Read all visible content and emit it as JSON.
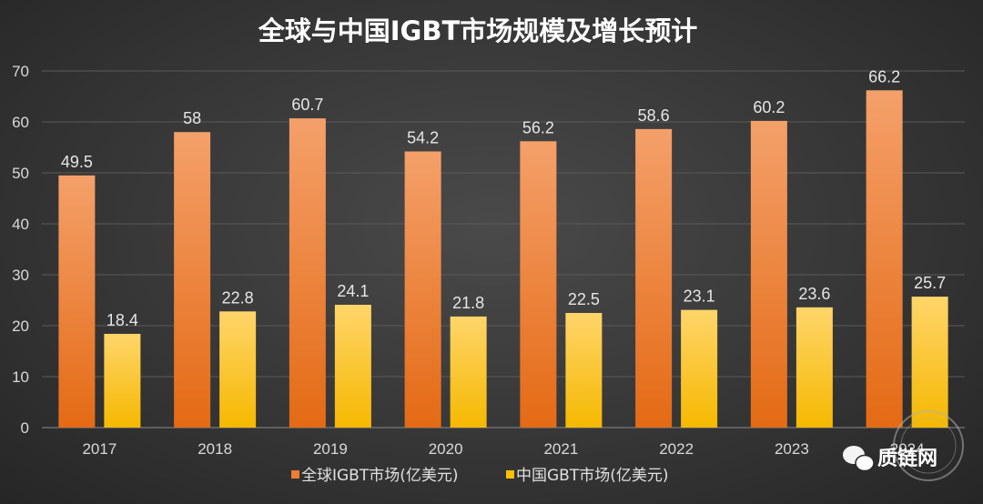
{
  "chart_data": {
    "type": "bar",
    "title": "全球与中国IGBT市场规模及增长预计",
    "categories": [
      "2017",
      "2018",
      "2019",
      "2020",
      "2021",
      "2022",
      "2023",
      "2024"
    ],
    "series": [
      {
        "name": "全球IGBT市场(亿美元)",
        "values": [
          49.5,
          58,
          60.7,
          54.2,
          56.2,
          58.6,
          60.2,
          66.2
        ],
        "color": "#ED7D31"
      },
      {
        "name": "中国GBT市场(亿美元)",
        "values": [
          18.4,
          22.8,
          24.1,
          21.8,
          22.5,
          23.1,
          23.6,
          25.7
        ],
        "color": "#FFC000"
      }
    ],
    "ylim": [
      0,
      70
    ],
    "yticks": [
      0,
      10,
      20,
      30,
      40,
      50,
      60,
      70
    ],
    "grid": true,
    "legend": "bottom",
    "data_labels": true
  },
  "watermark": {
    "text": "质链网",
    "icon": "wechat-icon"
  }
}
